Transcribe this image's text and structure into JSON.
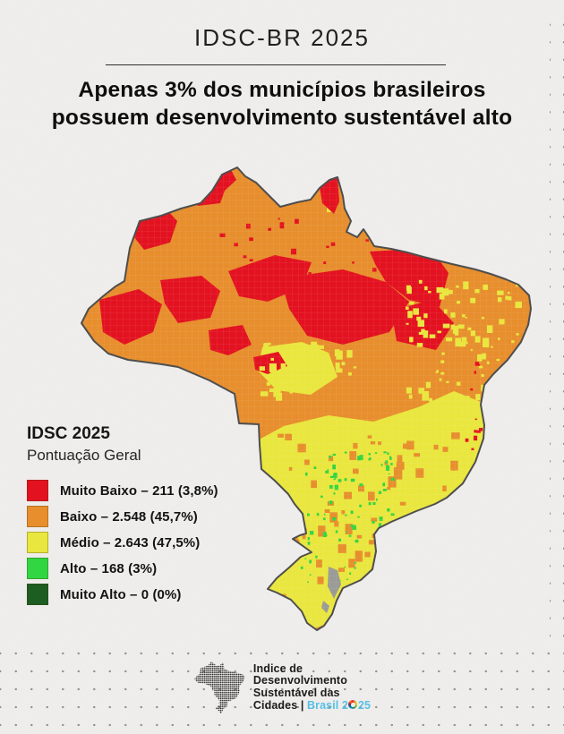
{
  "header": {
    "title": "IDSC-BR 2025",
    "headline_line1": "Apenas 3% dos municípios brasileiros",
    "headline_line2": "possuem desenvolvimento sustentável alto"
  },
  "legend": {
    "title": "IDSC 2025",
    "subtitle": "Pontuação Geral",
    "items": [
      {
        "label": "Muito Baixo",
        "display": "Muito Baixo – 211 (3,8%)",
        "color": "#e60f1e"
      },
      {
        "label": "Baixo",
        "display": "Baixo – 2.548 (45,7%)",
        "color": "#ea8e2b"
      },
      {
        "label": "Médio",
        "display": "Médio – 2.643 (47,5%)",
        "color": "#ece93d"
      },
      {
        "label": "Alto",
        "display": "Alto – 168 (3%)",
        "color": "#2fd83f"
      },
      {
        "label": "Muito Alto",
        "display": "Muito Alto – 0 (0%)",
        "color": "#1a5c20"
      }
    ]
  },
  "map": {
    "palette": {
      "muito_baixo": "#e60f1e",
      "baixo": "#ea8e2b",
      "medio": "#ece93d",
      "alto": "#2fd83f",
      "muito_alto": "#1a5c20",
      "water_gray": "#9b9b97",
      "outline": "#4d4d4d"
    }
  },
  "footer": {
    "line1": "Indice de",
    "line2": "Desenvolvimento",
    "line3": "Sustentável das",
    "line4_prefix": "Cidades | ",
    "brand_pre": "Brasil 2",
    "brand_suf": "25",
    "brand_color": "#56c2e8"
  },
  "chart_data": {
    "type": "choropleth-map",
    "region": "Brazil, by municipality",
    "title": "IDSC 2025 – Pontuação Geral",
    "categories": [
      "Muito Baixo",
      "Baixo",
      "Médio",
      "Alto",
      "Muito Alto"
    ],
    "counts": [
      211,
      2548,
      2643,
      168,
      0
    ],
    "percent_labels": [
      "3,8%",
      "45,7%",
      "47,5%",
      "3%",
      "0%"
    ],
    "colors": [
      "#e60f1e",
      "#ea8e2b",
      "#ece93d",
      "#2fd83f",
      "#1a5c20"
    ],
    "legend_position": "left-middle",
    "notes": "North/center-north predominantly Baixo with large Muito Baixo patches; south/southeast predominantly Médio with Alto speckles; no Muito Alto municipalities"
  }
}
